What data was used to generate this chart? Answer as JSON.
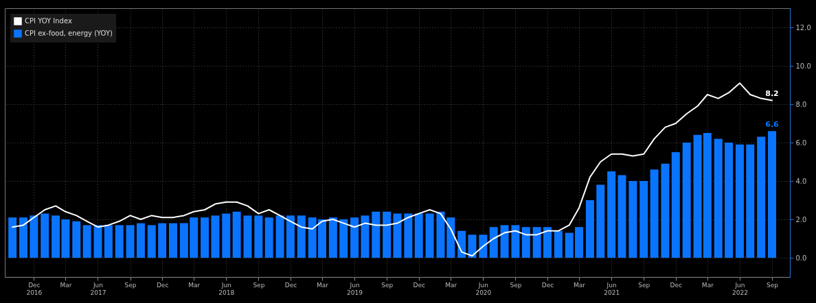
{
  "chart_data": {
    "type": "bar",
    "legend": "top left",
    "grid": true,
    "x": [
      "2016-10",
      "2016-11",
      "2016-12",
      "2017-01",
      "2017-02",
      "2017-03",
      "2017-04",
      "2017-05",
      "2017-06",
      "2017-07",
      "2017-08",
      "2017-09",
      "2017-10",
      "2017-11",
      "2017-12",
      "2018-01",
      "2018-02",
      "2018-03",
      "2018-04",
      "2018-05",
      "2018-06",
      "2018-07",
      "2018-08",
      "2018-09",
      "2018-10",
      "2018-11",
      "2018-12",
      "2019-01",
      "2019-02",
      "2019-03",
      "2019-04",
      "2019-05",
      "2019-06",
      "2019-07",
      "2019-08",
      "2019-09",
      "2019-10",
      "2019-11",
      "2019-12",
      "2020-01",
      "2020-02",
      "2020-03",
      "2020-04",
      "2020-05",
      "2020-06",
      "2020-07",
      "2020-08",
      "2020-09",
      "2020-10",
      "2020-11",
      "2020-12",
      "2021-01",
      "2021-02",
      "2021-03",
      "2021-04",
      "2021-05",
      "2021-06",
      "2021-07",
      "2021-08",
      "2021-09",
      "2021-10",
      "2021-11",
      "2021-12",
      "2022-01",
      "2022-02",
      "2022-03",
      "2022-04",
      "2022-05",
      "2022-06",
      "2022-07",
      "2022-08",
      "2022-09"
    ],
    "series": [
      {
        "name": "CPI YOY Index",
        "type": "line",
        "color": "#ffffff",
        "values": [
          1.6,
          1.7,
          2.1,
          2.5,
          2.7,
          2.4,
          2.2,
          1.9,
          1.6,
          1.7,
          1.9,
          2.2,
          2.0,
          2.2,
          2.1,
          2.1,
          2.2,
          2.4,
          2.5,
          2.8,
          2.9,
          2.9,
          2.7,
          2.3,
          2.5,
          2.2,
          1.9,
          1.6,
          1.5,
          1.9,
          2.0,
          1.8,
          1.6,
          1.8,
          1.7,
          1.7,
          1.8,
          2.1,
          2.3,
          2.5,
          2.3,
          1.5,
          0.3,
          0.1,
          0.6,
          1.0,
          1.3,
          1.4,
          1.2,
          1.2,
          1.4,
          1.4,
          1.7,
          2.6,
          4.2,
          5.0,
          5.4,
          5.4,
          5.3,
          5.4,
          6.2,
          6.8,
          7.0,
          7.5,
          7.9,
          8.5,
          8.3,
          8.6,
          9.1,
          8.5,
          8.3,
          8.2
        ],
        "value_labels": [
          null,
          null,
          null,
          null,
          null,
          null,
          null,
          null,
          null,
          null,
          null,
          null,
          null,
          null,
          null,
          null,
          null,
          null,
          null,
          null,
          null,
          null,
          null,
          null,
          null,
          null,
          null,
          null,
          null,
          null,
          null,
          null,
          null,
          null,
          null,
          null,
          null,
          null,
          null,
          null,
          null,
          null,
          null,
          null,
          null,
          null,
          null,
          null,
          null,
          null,
          null,
          null,
          null,
          null,
          null,
          null,
          null,
          null,
          null,
          null,
          null,
          null,
          null,
          null,
          null,
          null,
          null,
          null,
          null,
          null,
          null,
          "8.2"
        ]
      },
      {
        "name": "CPI ex-food, energy (YOY)",
        "color": "#0a74ff",
        "values": [
          2.1,
          2.1,
          2.2,
          2.3,
          2.2,
          2.0,
          1.9,
          1.7,
          1.7,
          1.7,
          1.7,
          1.7,
          1.8,
          1.7,
          1.8,
          1.8,
          1.8,
          2.1,
          2.1,
          2.2,
          2.3,
          2.4,
          2.2,
          2.2,
          2.1,
          2.2,
          2.2,
          2.2,
          2.1,
          2.0,
          2.1,
          2.0,
          2.1,
          2.2,
          2.4,
          2.4,
          2.3,
          2.3,
          2.3,
          2.3,
          2.4,
          2.1,
          1.4,
          1.2,
          1.2,
          1.6,
          1.7,
          1.7,
          1.6,
          1.6,
          1.6,
          1.4,
          1.3,
          1.6,
          3.0,
          3.8,
          4.5,
          4.3,
          4.0,
          4.0,
          4.6,
          4.9,
          5.5,
          6.0,
          6.4,
          6.5,
          6.2,
          6.0,
          5.9,
          5.9,
          6.3,
          6.6
        ],
        "value_labels": [
          null,
          null,
          null,
          null,
          null,
          null,
          null,
          null,
          null,
          null,
          null,
          null,
          null,
          null,
          null,
          null,
          null,
          null,
          null,
          null,
          null,
          null,
          null,
          null,
          null,
          null,
          null,
          null,
          null,
          null,
          null,
          null,
          null,
          null,
          null,
          null,
          null,
          null,
          null,
          null,
          null,
          null,
          null,
          null,
          null,
          null,
          null,
          null,
          null,
          null,
          null,
          null,
          null,
          null,
          null,
          null,
          null,
          null,
          null,
          null,
          null,
          null,
          null,
          null,
          null,
          null,
          null,
          null,
          null,
          null,
          null,
          "6.6"
        ]
      }
    ],
    "xlim": [
      "2016-09-19",
      "2022-10-12"
    ],
    "xticks": [
      {
        "value": "2016-12",
        "label": "Dec\n2016"
      },
      {
        "value": "2017-03",
        "label": "Mar"
      },
      {
        "value": "2017-06",
        "label": "Jun\n2017"
      },
      {
        "value": "2017-09",
        "label": "Sep"
      },
      {
        "value": "2017-12",
        "label": "Dec"
      },
      {
        "value": "2018-03",
        "label": "Mar"
      },
      {
        "value": "2018-06",
        "label": "Jun\n2018"
      },
      {
        "value": "2018-09",
        "label": "Sep"
      },
      {
        "value": "2018-12",
        "label": "Dec"
      },
      {
        "value": "2019-03",
        "label": "Mar"
      },
      {
        "value": "2019-06",
        "label": "Jun\n2019"
      },
      {
        "value": "2019-09",
        "label": "Sep"
      },
      {
        "value": "2019-12",
        "label": "Dec"
      },
      {
        "value": "2020-03",
        "label": "Mar"
      },
      {
        "value": "2020-06",
        "label": "Jun\n2020"
      },
      {
        "value": "2020-09",
        "label": "Sep"
      },
      {
        "value": "2020-12",
        "label": "Dec"
      },
      {
        "value": "2021-03",
        "label": "Mar"
      },
      {
        "value": "2021-06",
        "label": "Jun\n2021"
      },
      {
        "value": "2021-09",
        "label": "Sep"
      },
      {
        "value": "2021-12",
        "label": "Dec"
      },
      {
        "value": "2022-03",
        "label": "Mar"
      },
      {
        "value": "2022-06",
        "label": "Jun\n2022"
      },
      {
        "value": "2022-09",
        "label": "Sep"
      }
    ],
    "ylim": [
      -1,
      13
    ],
    "yticks": [
      {
        "value": 0,
        "label": "0.0"
      },
      {
        "value": 2,
        "label": "2.0"
      },
      {
        "value": 4,
        "label": "4.0"
      },
      {
        "value": 6,
        "label": "6.0"
      },
      {
        "value": 8,
        "label": "8.0"
      },
      {
        "value": 10,
        "label": "10.0"
      },
      {
        "value": 12,
        "label": "12.0"
      }
    ]
  }
}
